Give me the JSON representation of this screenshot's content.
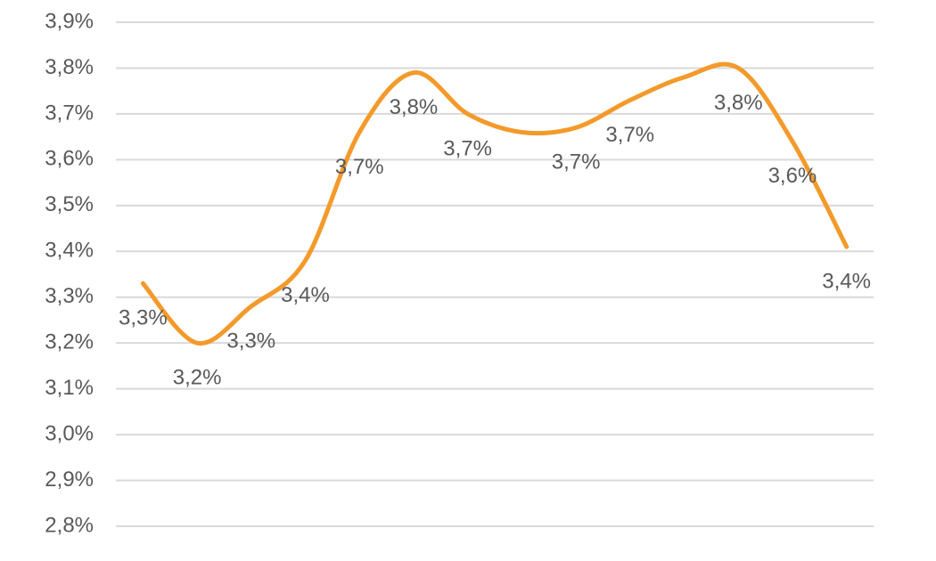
{
  "chart_data": {
    "type": "line",
    "categories": [
      null,
      null,
      null,
      null,
      null,
      null,
      null,
      null,
      null,
      null,
      null,
      null,
      null,
      null
    ],
    "series": [
      {
        "color": "#f39a2b",
        "values": [
          3.33,
          3.2,
          3.28,
          3.38,
          3.66,
          3.79,
          3.7,
          3.66,
          3.67,
          3.73,
          3.78,
          3.8,
          3.64,
          3.41
        ],
        "value_labels": [
          "3,3%",
          "3,2%",
          "3,3%",
          "3,4%",
          "3,7%",
          "3,8%",
          "3,7%",
          null,
          "3,7%",
          "3,7%",
          null,
          "3,8%",
          "3,6%",
          "3,4%"
        ]
      }
    ],
    "ylim": [
      2.8,
      3.9
    ],
    "yticks": [
      {
        "value": 2.8,
        "label": "2,8%"
      },
      {
        "value": 2.9,
        "label": "2,9%"
      },
      {
        "value": 3.0,
        "label": "3,0%"
      },
      {
        "value": 3.1,
        "label": "3,1%"
      },
      {
        "value": 3.2,
        "label": "3,2%"
      },
      {
        "value": 3.3,
        "label": "3,3%"
      },
      {
        "value": 3.4,
        "label": "3,4%"
      },
      {
        "value": 3.5,
        "label": "3,5%"
      },
      {
        "value": 3.6,
        "label": "3,6%"
      },
      {
        "value": 3.7,
        "label": "3,7%"
      },
      {
        "value": 3.8,
        "label": "3,8%"
      },
      {
        "value": 3.9,
        "label": "3,9%"
      }
    ],
    "grid": true
  }
}
